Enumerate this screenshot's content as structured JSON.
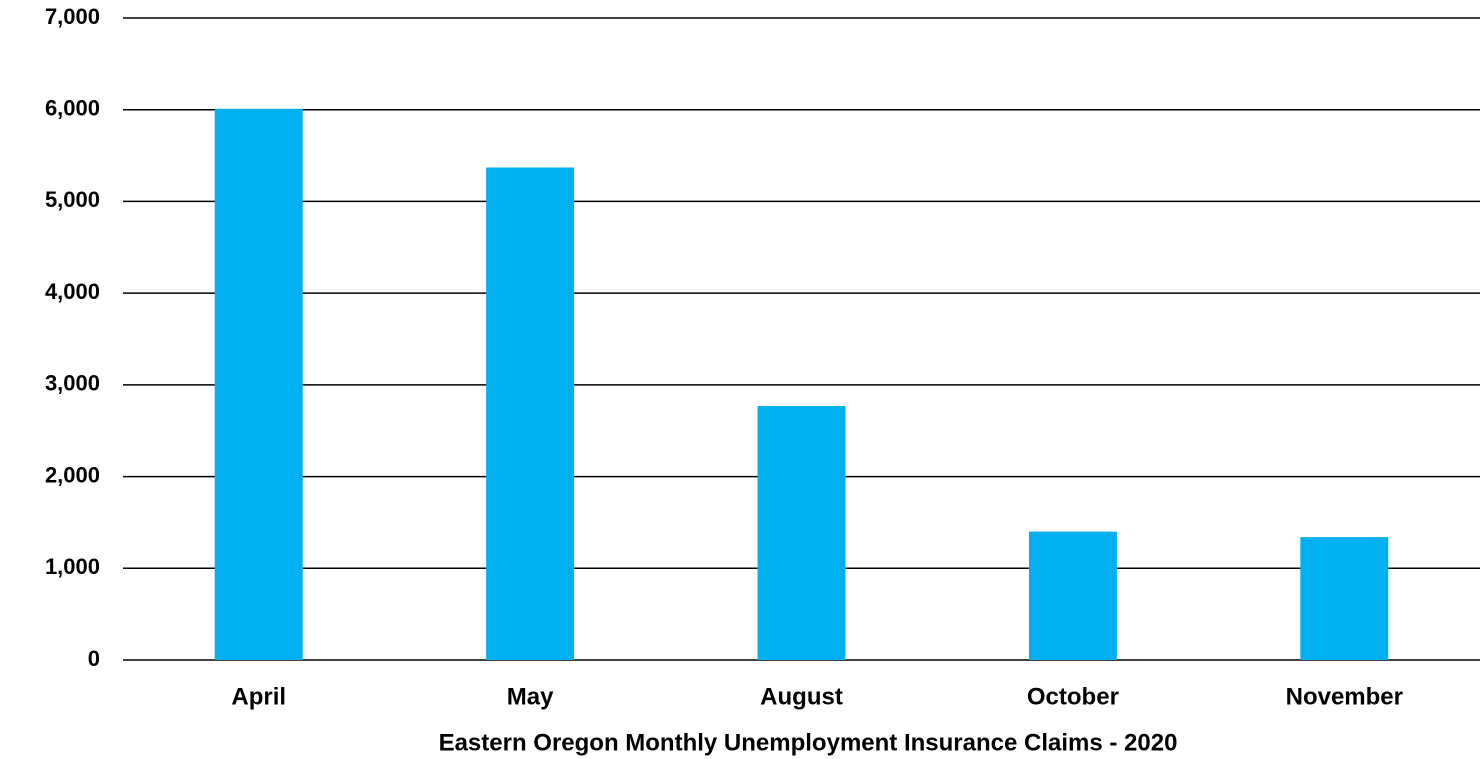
{
  "chart_data": {
    "type": "bar",
    "title": "Eastern Oregon Monthly Unemployment Insurance Claims - 2020",
    "categories": [
      "April",
      "May",
      "August",
      "October",
      "November"
    ],
    "values": [
      6010,
      5370,
      2770,
      1400,
      1340
    ],
    "color": "#00b0f0",
    "ylim": [
      0,
      7000
    ],
    "yticks": [
      0,
      {
        "value": 1000,
        "label": "1,000"
      },
      {
        "value": 2000,
        "label": "2,000"
      },
      {
        "value": 3000,
        "label": "3,000"
      },
      {
        "value": 4000,
        "label": "4,000"
      },
      {
        "value": 5000,
        "label": "5,000"
      },
      {
        "value": 6000,
        "label": "6,000"
      },
      {
        "value": 7000,
        "label": "7,000"
      }
    ],
    "grid": true
  }
}
